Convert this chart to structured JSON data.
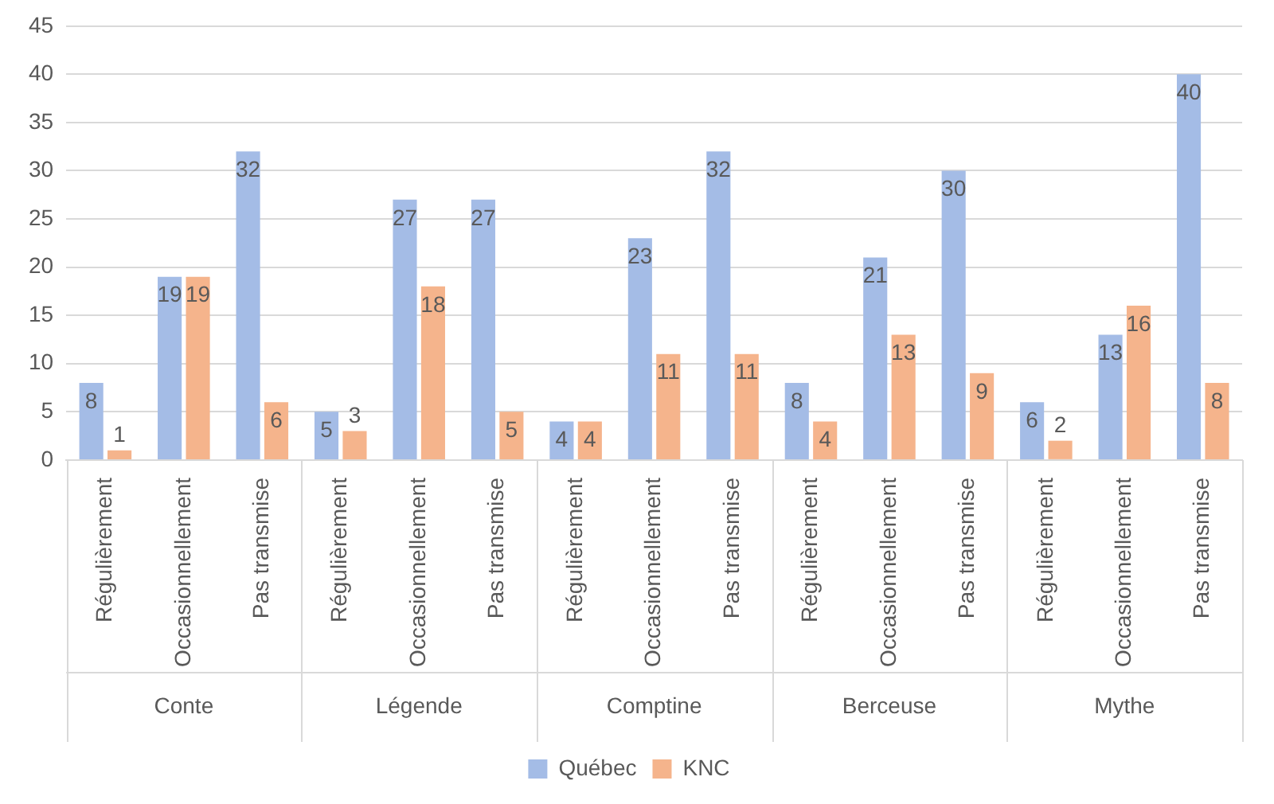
{
  "chart_data": {
    "type": "bar",
    "categories": [
      "Régulièrement",
      "Occasionnellement",
      "Pas transmise",
      "Régulièrement",
      "Occasionnellement",
      "Pas transmise",
      "Régulièrement",
      "Occasionnellement",
      "Pas transmise",
      "Régulièrement",
      "Occasionnellement",
      "Pas transmise",
      "Régulièrement",
      "Occasionnellement",
      "Pas transmise"
    ],
    "annotations": [
      "Conte",
      "Légende",
      "Comptine",
      "Berceuse",
      "Mythe"
    ],
    "series": [
      {
        "name": "Québec",
        "color": "#a4bce6",
        "values": [
          8,
          19,
          32,
          5,
          27,
          27,
          4,
          23,
          32,
          8,
          21,
          30,
          6,
          13,
          40
        ]
      },
      {
        "name": "KNC",
        "color": "#f5b48c",
        "values": [
          1,
          19,
          6,
          3,
          18,
          5,
          4,
          11,
          11,
          4,
          13,
          9,
          2,
          16,
          8
        ]
      }
    ],
    "ylim": [
      0,
      45
    ],
    "yticks": [
      0,
      5,
      10,
      15,
      20,
      25,
      30,
      35,
      40,
      45
    ],
    "grid": "y",
    "legend": "bottom",
    "data_labels": true
  }
}
